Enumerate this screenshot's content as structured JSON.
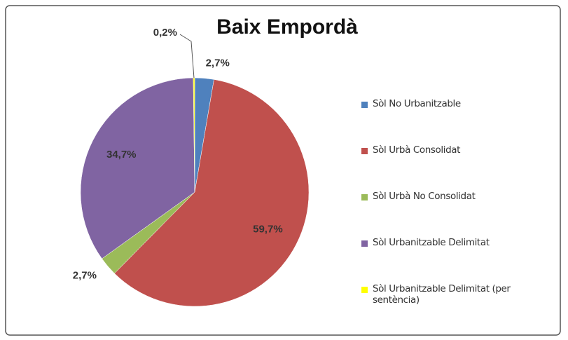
{
  "chart_data": {
    "type": "pie",
    "title": "Baix Empordà",
    "categories": [
      "Sòl No Urbanitzable",
      "Sòl Urbà Consolidat",
      "Sòl Urbà No Consolidat",
      "Sòl Urbanitzable Delimitat",
      "Sòl Urbanitzable Delimitat (per sentència)"
    ],
    "values": [
      2.7,
      59.7,
      2.7,
      34.7,
      0.2
    ],
    "value_labels": [
      "2,7%",
      "59,7%",
      "2,7%",
      "34,7%",
      "0,2%"
    ],
    "colors": [
      "#4f81bd",
      "#c0504d",
      "#9bbb59",
      "#8064a2",
      "#ffff00"
    ],
    "legend": "right"
  }
}
